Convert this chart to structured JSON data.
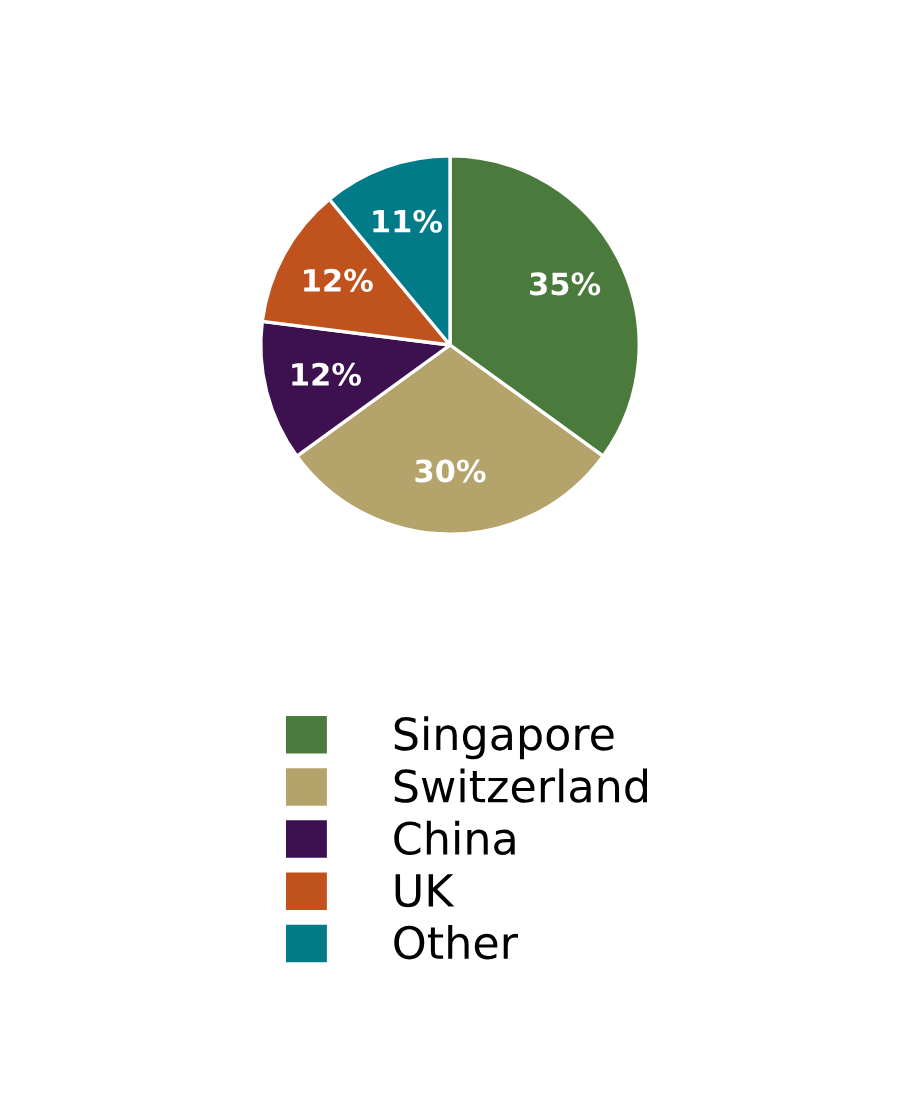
{
  "chart_data": {
    "type": "pie",
    "categories": [
      "Singapore",
      "Switzerland",
      "China",
      "UK",
      "Other"
    ],
    "values": [
      35,
      30,
      12,
      12,
      11
    ],
    "colors": [
      "#4a7a3c",
      "#b4a36a",
      "#3d1150",
      "#c0531d",
      "#007b87"
    ],
    "value_labels": [
      "35%",
      "30%",
      "12%",
      "12%",
      "11%"
    ],
    "legend": "bottom"
  }
}
